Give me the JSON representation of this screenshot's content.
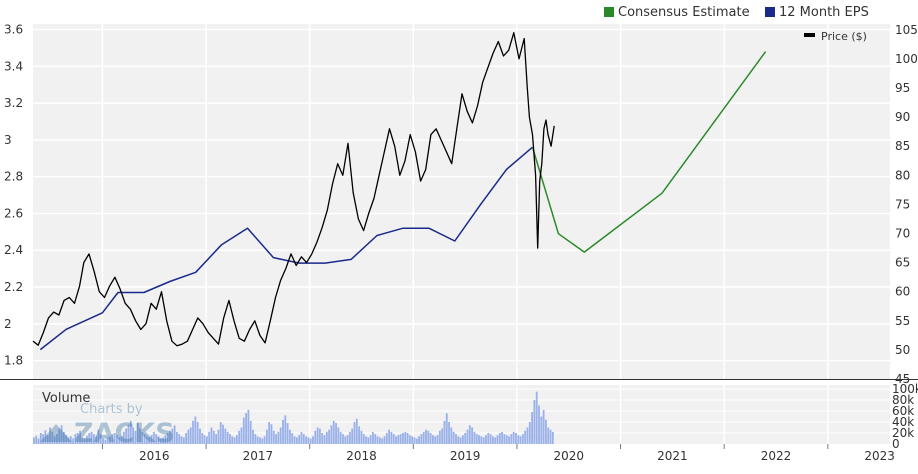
{
  "chart_data": {
    "type": "line",
    "title": "",
    "legend": {
      "placement": "top-right",
      "items": [
        {
          "label": "Consensus Estimate",
          "color": "#2a8a2a"
        },
        {
          "label": "12 Month EPS",
          "color": "#1a2a8a"
        }
      ],
      "price_label": "Price ($)",
      "price_color": "#000000"
    },
    "x_axis": {
      "labels": [
        "2016",
        "2017",
        "2018",
        "2019",
        "2020",
        "2021",
        "2022",
        "2023"
      ],
      "range": [
        2015.33,
        2023.6
      ]
    },
    "y_left": {
      "label": "",
      "range": [
        1.7,
        3.63
      ],
      "ticks": [
        1.8,
        2,
        2.2,
        2.4,
        2.6,
        2.8,
        3,
        3.2,
        3.4,
        3.6
      ],
      "tick_labels": [
        "1.8",
        "2",
        "2.2",
        "2.4",
        "2.6",
        "2.8",
        "3",
        "3.2",
        "3.4",
        "3.6"
      ]
    },
    "y_right": {
      "label": "Price ($)",
      "range": [
        45,
        106
      ],
      "ticks": [
        45,
        50,
        55,
        60,
        65,
        70,
        75,
        80,
        85,
        90,
        95,
        100,
        105
      ],
      "tick_labels": [
        "45",
        "50",
        "55",
        "60",
        "65",
        "70",
        "75",
        "80",
        "85",
        "90",
        "95",
        "100",
        "105"
      ]
    },
    "grid": {
      "horizontal": true,
      "vertical": true
    },
    "series": [
      {
        "name": "12 Month EPS",
        "axis": "left",
        "color": "#1a2a8a",
        "x": [
          2015.4,
          2015.65,
          2016.0,
          2016.15,
          2016.4,
          2016.65,
          2016.9,
          2017.15,
          2017.4,
          2017.65,
          2017.9,
          2018.15,
          2018.4,
          2018.65,
          2018.9,
          2019.15,
          2019.4,
          2019.65,
          2019.9,
          2020.15
        ],
        "values": [
          1.86,
          1.97,
          2.06,
          2.17,
          2.17,
          2.23,
          2.28,
          2.43,
          2.52,
          2.36,
          2.33,
          2.33,
          2.35,
          2.48,
          2.52,
          2.52,
          2.45,
          2.65,
          2.84,
          2.96
        ]
      },
      {
        "name": "Consensus Estimate",
        "axis": "left",
        "color": "#2a8a2a",
        "x": [
          2020.15,
          2020.4,
          2020.65,
          2021.4,
          2022.4
        ],
        "values": [
          2.96,
          2.49,
          2.39,
          2.71,
          3.48
        ]
      },
      {
        "name": "Price ($)",
        "axis": "right",
        "color": "#000000",
        "x": [
          2015.33,
          2015.38,
          2015.43,
          2015.48,
          2015.53,
          2015.58,
          2015.63,
          2015.68,
          2015.73,
          2015.78,
          2015.82,
          2015.87,
          2015.92,
          2015.97,
          2016.02,
          2016.07,
          2016.12,
          2016.17,
          2016.22,
          2016.27,
          2016.32,
          2016.37,
          2016.42,
          2016.47,
          2016.52,
          2016.57,
          2016.62,
          2016.67,
          2016.72,
          2016.77,
          2016.82,
          2016.87,
          2016.92,
          2016.97,
          2017.02,
          2017.07,
          2017.12,
          2017.17,
          2017.22,
          2017.27,
          2017.32,
          2017.37,
          2017.42,
          2017.47,
          2017.52,
          2017.57,
          2017.62,
          2017.67,
          2017.72,
          2017.77,
          2017.82,
          2017.87,
          2017.92,
          2017.97,
          2018.02,
          2018.07,
          2018.12,
          2018.17,
          2018.22,
          2018.27,
          2018.32,
          2018.37,
          2018.42,
          2018.47,
          2018.52,
          2018.57,
          2018.62,
          2018.67,
          2018.72,
          2018.77,
          2018.82,
          2018.87,
          2018.92,
          2018.97,
          2019.02,
          2019.07,
          2019.12,
          2019.17,
          2019.22,
          2019.27,
          2019.32,
          2019.37,
          2019.42,
          2019.47,
          2019.52,
          2019.57,
          2019.62,
          2019.67,
          2019.72,
          2019.77,
          2019.82,
          2019.87,
          2019.92,
          2019.97,
          2020.02,
          2020.07,
          2020.1,
          2020.12,
          2020.15,
          2020.18,
          2020.2,
          2020.22,
          2020.24,
          2020.26,
          2020.28,
          2020.3,
          2020.33,
          2020.36
        ],
        "values": [
          51.5,
          50.8,
          53.0,
          55.5,
          56.5,
          56.0,
          58.5,
          59.0,
          58.0,
          61.0,
          65.0,
          66.5,
          63.5,
          60.0,
          59.0,
          61.0,
          62.5,
          60.5,
          58.0,
          57.0,
          55.0,
          53.5,
          54.5,
          58.0,
          57.0,
          60.0,
          55.0,
          51.5,
          50.7,
          51.0,
          51.5,
          53.5,
          55.5,
          54.5,
          53.0,
          52.0,
          51.0,
          55.5,
          58.5,
          55.0,
          52.0,
          51.5,
          53.5,
          55.0,
          52.5,
          51.2,
          55.0,
          59.0,
          62.0,
          64.0,
          66.5,
          64.5,
          66.0,
          65.0,
          66.5,
          68.5,
          71.0,
          74.0,
          78.5,
          82.0,
          80.0,
          85.5,
          77.0,
          72.5,
          70.5,
          73.5,
          76.0,
          80.0,
          84.0,
          88.0,
          85.0,
          80.0,
          82.5,
          87.0,
          84.0,
          79.0,
          81.0,
          87.0,
          88.0,
          86.0,
          84.0,
          82.0,
          88.0,
          94.0,
          91.0,
          89.0,
          92.0,
          96.0,
          98.5,
          101.0,
          103.0,
          100.5,
          101.5,
          104.5,
          100.0,
          103.5,
          95.0,
          90.0,
          87.0,
          80.0,
          67.5,
          79.0,
          82.0,
          88.0,
          89.5,
          87.0,
          85.0,
          88.5
        ]
      },
      {
        "name": "Volume",
        "type": "bar",
        "axis": "volume",
        "color": "#9ab0e8",
        "x_range": [
          2015.33,
          2020.36
        ],
        "values": [
          12,
          15,
          10,
          20,
          18,
          25,
          16,
          30,
          22,
          14,
          18,
          28,
          34,
          22,
          16,
          12,
          14,
          10,
          18,
          20,
          24,
          12,
          10,
          15,
          20,
          22,
          18,
          14,
          26,
          18,
          10,
          8,
          12,
          14,
          18,
          20,
          16,
          12,
          14,
          22,
          28,
          35,
          42,
          30,
          24,
          38,
          28,
          22,
          18,
          14,
          12,
          16,
          22,
          18,
          14,
          10,
          12,
          16,
          20,
          24,
          28,
          34,
          22,
          18,
          14,
          12,
          20,
          26,
          30,
          42,
          50,
          40,
          28,
          20,
          16,
          14,
          22,
          30,
          24,
          18,
          26,
          40,
          35,
          28,
          22,
          18,
          14,
          12,
          16,
          24,
          30,
          48,
          56,
          62,
          42,
          26,
          18,
          14,
          12,
          10,
          14,
          26,
          40,
          36,
          24,
          18,
          22,
          30,
          44,
          52,
          38,
          26,
          20,
          14,
          12,
          16,
          22,
          18,
          14,
          12,
          10,
          14,
          24,
          30,
          28,
          20,
          16,
          22,
          26,
          34,
          42,
          38,
          30,
          22,
          18,
          14,
          16,
          22,
          28,
          40,
          46,
          32,
          24,
          18,
          14,
          12,
          16,
          22,
          18,
          14,
          12,
          10,
          14,
          20,
          26,
          22,
          18,
          14,
          16,
          18,
          20,
          22,
          20,
          16,
          14,
          12,
          10,
          14,
          18,
          22,
          26,
          24,
          20,
          16,
          14,
          16,
          24,
          28,
          42,
          56,
          40,
          30,
          22,
          18,
          14,
          12,
          16,
          20,
          26,
          34,
          30,
          22,
          18,
          16,
          14,
          12,
          16,
          20,
          18,
          14,
          12,
          16,
          20,
          22,
          18,
          16,
          14,
          18,
          22,
          20,
          16,
          14,
          18,
          24,
          30,
          40,
          58,
          80,
          95,
          70,
          50,
          62,
          44,
          30,
          26,
          22
        ]
      }
    ],
    "volume_axis": {
      "label": "Volume",
      "range": [
        0,
        100000
      ],
      "ticks": [
        0,
        20000,
        40000,
        60000,
        80000,
        100000
      ],
      "tick_labels": [
        "0",
        "20k",
        "40k",
        "60k",
        "80k",
        "100k"
      ]
    }
  },
  "watermark": {
    "line1": "Charts by",
    "line2": "ZACKS"
  }
}
